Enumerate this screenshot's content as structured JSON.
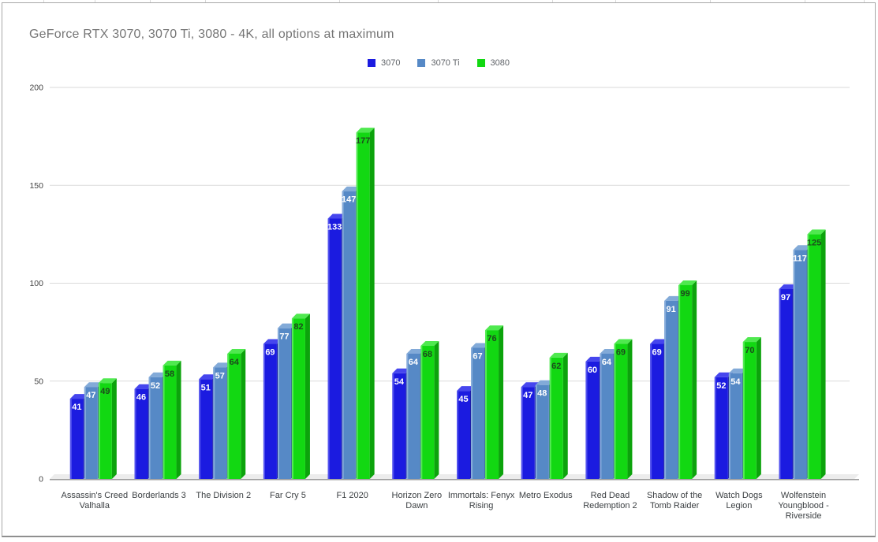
{
  "chart_data": {
    "type": "bar",
    "style": "3d-column-grouped",
    "title": "GeForce RTX 3070, 3070 Ti, 3080 - 4K, all options at maximum",
    "legend_position": "top",
    "grid": true,
    "ylim": [
      0,
      200
    ],
    "yticks": [
      0,
      50,
      100,
      150,
      200
    ],
    "xlabel": "",
    "ylabel": "",
    "categories": [
      "Assassin's Creed Valhalla",
      "Borderlands 3",
      "The Division 2",
      "Far Cry 5",
      "F1 2020",
      "Horizon Zero Dawn",
      "Immortals: Fenyx Rising",
      "Metro Exodus",
      "Red Dead Redemption 2",
      "Shadow of the Tomb Raider",
      "Watch Dogs Legion",
      "Wolfenstein Youngblood - Riverside"
    ],
    "category_lines": [
      [
        "Assassin's Creed",
        "Valhalla"
      ],
      [
        "Borderlands 3"
      ],
      [
        "The Division 2"
      ],
      [
        "Far Cry 5"
      ],
      [
        "F1 2020"
      ],
      [
        "Horizon Zero",
        "Dawn"
      ],
      [
        "Immortals: Fenyx",
        "Rising"
      ],
      [
        "Metro Exodus"
      ],
      [
        "Red Dead",
        "Redemption 2"
      ],
      [
        "Shadow of the",
        "Tomb Raider"
      ],
      [
        "Watch Dogs",
        "Legion"
      ],
      [
        "Wolfenstein",
        "Youngblood -",
        "Riverside"
      ]
    ],
    "series": [
      {
        "name": "3070",
        "color": "#1b1be0",
        "color_top": "#4646ee",
        "color_side": "#12129f",
        "color_bevel": "#5c5cf0",
        "label_color": "#ffffff",
        "values": [
          41,
          46,
          51,
          69,
          133,
          54,
          45,
          47,
          60,
          69,
          52,
          97
        ]
      },
      {
        "name": "3070 Ti",
        "color": "#5689c6",
        "color_top": "#82aad8",
        "color_side": "#3d689c",
        "color_bevel": "#8fb3de",
        "label_color": "#ffffff",
        "values": [
          47,
          52,
          57,
          77,
          147,
          64,
          67,
          48,
          64,
          91,
          54,
          117
        ]
      },
      {
        "name": "3080",
        "color": "#12d812",
        "color_top": "#4fe94f",
        "color_side": "#0ca30c",
        "color_bevel": "#63ee63",
        "label_color": "#1d4a1d",
        "values": [
          49,
          58,
          64,
          82,
          177,
          68,
          76,
          62,
          69,
          99,
          70,
          125
        ]
      }
    ],
    "colors": {
      "grid": "#dadada",
      "axis": "#9e9e9e",
      "floor": "#ececec",
      "tick_text": "#424242",
      "category_text": "#3c4043",
      "title_text": "#757575"
    }
  }
}
